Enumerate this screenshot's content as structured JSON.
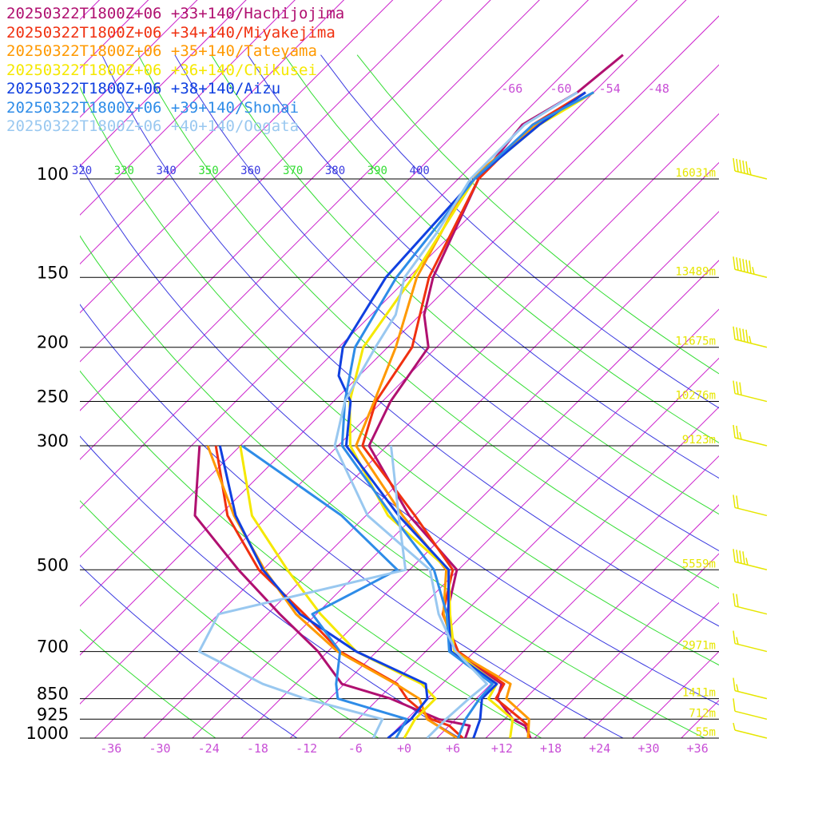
{
  "chart_data": {
    "type": "line",
    "title": "",
    "legend_position": "top-left",
    "xlabel": "",
    "ylabel": "",
    "ylim": [
      1000,
      100
    ],
    "xlim": [
      -36,
      36
    ],
    "pressure_levels": [
      100,
      150,
      200,
      250,
      300,
      500,
      700,
      850,
      925,
      1000
    ],
    "temperature_ticks": [
      "-36",
      "-30",
      "-24",
      "-18",
      "-12",
      "-6",
      "+0",
      "+6",
      "+12",
      "+18",
      "+24",
      "+30",
      "+36"
    ],
    "top_temperature_labels": [
      "-66",
      "-60",
      "-54",
      "-48"
    ],
    "theta_labels": [
      "320",
      "330",
      "340",
      "350",
      "360",
      "370",
      "380",
      "390",
      "400"
    ],
    "height_labels": [
      {
        "p": 100,
        "text": "16031m"
      },
      {
        "p": 150,
        "text": "13489m"
      },
      {
        "p": 200,
        "text": "11675m"
      },
      {
        "p": 250,
        "text": "10276m"
      },
      {
        "p": 300,
        "text": "9123m"
      },
      {
        "p": 500,
        "text": "5559m"
      },
      {
        "p": 700,
        "text": "2971m"
      },
      {
        "p": 850,
        "text": "1411m"
      },
      {
        "p": 925,
        "text": "712m"
      },
      {
        "p": 1000,
        "text": "55m"
      }
    ],
    "colors": {
      "isotherm": "#cc22cc",
      "dry_adiabat_blue": "#3a3ae0",
      "dry_adiabat_green": "#33dd33",
      "height_label": "#e6e600",
      "wind_barb": "#e6e600",
      "axis": "#000000"
    },
    "series": [
      {
        "name": "20250322T1800Z+06 +33+140/Hachijojima",
        "color": "#b01070",
        "temperature": [
          [
            1000,
            15.5
          ],
          [
            950,
            13.3
          ],
          [
            925,
            11.0
          ],
          [
            850,
            6.6
          ],
          [
            800,
            5.3
          ],
          [
            700,
            -4.3
          ],
          [
            600,
            -10.0
          ],
          [
            500,
            -14.2
          ],
          [
            400,
            -26.7
          ],
          [
            300,
            -40.2
          ],
          [
            250,
            -43.0
          ],
          [
            200,
            -45.0
          ],
          [
            175,
            -49.5
          ],
          [
            150,
            -53.0
          ],
          [
            100,
            -59.5
          ],
          [
            80,
            -60.8
          ],
          [
            70,
            -58.0
          ],
          [
            60,
            -57.0
          ]
        ],
        "dewpoint": [
          [
            1000,
            7.5
          ],
          [
            950,
            6.5
          ],
          [
            925,
            1.9
          ],
          [
            850,
            -6.5
          ],
          [
            800,
            -14.3
          ],
          [
            700,
            -21.2
          ],
          [
            600,
            -30.5
          ],
          [
            500,
            -41.0
          ],
          [
            400,
            -53.0
          ],
          [
            300,
            -61.0
          ]
        ]
      },
      {
        "name": "20250322T1800Z+06 +34+140/Miyakejima",
        "color": "#f03010",
        "temperature": [
          [
            1000,
            15.3
          ],
          [
            950,
            13.7
          ],
          [
            925,
            12.0
          ],
          [
            850,
            6.4
          ],
          [
            800,
            5.6
          ],
          [
            700,
            -4.0
          ],
          [
            600,
            -10.5
          ],
          [
            500,
            -14.7
          ],
          [
            400,
            -26.0
          ],
          [
            300,
            -41.0
          ],
          [
            250,
            -44.8
          ],
          [
            200,
            -47.0
          ],
          [
            150,
            -53.5
          ],
          [
            100,
            -59.5
          ],
          [
            80,
            -59.5
          ],
          [
            70,
            -57.0
          ]
        ],
        "dewpoint": [
          [
            1000,
            7.2
          ],
          [
            950,
            4.0
          ],
          [
            925,
            1.0
          ],
          [
            850,
            -4.5
          ],
          [
            800,
            -7.5
          ],
          [
            700,
            -18.5
          ],
          [
            600,
            -27.5
          ],
          [
            500,
            -38.5
          ],
          [
            400,
            -49.0
          ],
          [
            300,
            -59.0
          ]
        ]
      },
      {
        "name": "20250322T1800Z+06 +35+140/Tateyama",
        "color": "#ff9900",
        "temperature": [
          [
            1000,
            15.2
          ],
          [
            925,
            13.0
          ],
          [
            850,
            7.7
          ],
          [
            800,
            6.4
          ],
          [
            700,
            -4.4
          ],
          [
            600,
            -10.4
          ],
          [
            500,
            -15.5
          ],
          [
            400,
            -27.5
          ],
          [
            300,
            -41.8
          ],
          [
            250,
            -45.0
          ],
          [
            200,
            -49.0
          ],
          [
            150,
            -55.0
          ],
          [
            100,
            -60.5
          ],
          [
            80,
            -59.0
          ],
          [
            70,
            -56.0
          ]
        ],
        "dewpoint": [
          [
            1000,
            6.5
          ],
          [
            925,
            0.5
          ],
          [
            850,
            -3.0
          ],
          [
            800,
            -7.7
          ],
          [
            700,
            -18.8
          ],
          [
            600,
            -28.5
          ],
          [
            500,
            -37.8
          ],
          [
            400,
            -48.2
          ],
          [
            300,
            -60.0
          ]
        ]
      },
      {
        "name": "20250322T1800Z+06 +36+140/Chikusei",
        "color": "#f5e800",
        "temperature": [
          [
            1000,
            13.0
          ],
          [
            925,
            11.0
          ],
          [
            850,
            5.5
          ],
          [
            800,
            4.7
          ],
          [
            700,
            -4.5
          ],
          [
            600,
            -9.6
          ],
          [
            500,
            -15.2
          ],
          [
            400,
            -29.3
          ],
          [
            300,
            -42.5
          ],
          [
            250,
            -48.0
          ],
          [
            200,
            -53.0
          ],
          [
            150,
            -55.5
          ],
          [
            100,
            -60.0
          ],
          [
            80,
            -58.7
          ],
          [
            70,
            -56.0
          ]
        ],
        "dewpoint": [
          [
            1000,
            0.0
          ],
          [
            925,
            -1.0
          ],
          [
            850,
            -1.0
          ],
          [
            800,
            -4.5
          ],
          [
            700,
            -16.5
          ],
          [
            600,
            -25.5
          ],
          [
            500,
            -35.0
          ],
          [
            400,
            -46.0
          ],
          [
            300,
            -56.0
          ]
        ]
      },
      {
        "name": "20250322T1800Z+06 +38+140/Aizu",
        "color": "#1040e0",
        "temperature": [
          [
            1000,
            8.5
          ],
          [
            925,
            7.0
          ],
          [
            850,
            4.7
          ],
          [
            800,
            4.7
          ],
          [
            700,
            -4.9
          ],
          [
            600,
            -9.8
          ],
          [
            500,
            -15.2
          ],
          [
            400,
            -28.0
          ],
          [
            300,
            -43.0
          ],
          [
            250,
            -47.9
          ],
          [
            225,
            -52.5
          ],
          [
            200,
            -55.5
          ],
          [
            150,
            -58.8
          ],
          [
            100,
            -60.0
          ],
          [
            80,
            -58.7
          ],
          [
            70,
            -57.0
          ]
        ],
        "dewpoint": [
          [
            1000,
            -2.0
          ],
          [
            925,
            -1.5
          ],
          [
            850,
            -2.0
          ],
          [
            800,
            -4.0
          ],
          [
            700,
            -16.5
          ],
          [
            600,
            -28.0
          ],
          [
            500,
            -38.0
          ],
          [
            400,
            -48.0
          ],
          [
            300,
            -58.5
          ]
        ]
      },
      {
        "name": "20250322T1800Z+06 +39+140/Shonai",
        "color": "#2e8ce8",
        "temperature": [
          [
            1000,
            6.6
          ],
          [
            925,
            5.2
          ],
          [
            850,
            4.4
          ],
          [
            800,
            4.2
          ],
          [
            700,
            -5.1
          ],
          [
            600,
            -10.0
          ],
          [
            500,
            -17.0
          ],
          [
            400,
            -28.8
          ],
          [
            300,
            -43.5
          ],
          [
            250,
            -48.6
          ],
          [
            200,
            -54.0
          ],
          [
            150,
            -57.5
          ],
          [
            100,
            -60.0
          ],
          [
            80,
            -59.5
          ],
          [
            70,
            -56.0
          ]
        ],
        "dewpoint": [
          [
            1000,
            -1.0
          ],
          [
            925,
            -2.0
          ],
          [
            850,
            -13.0
          ],
          [
            800,
            -15.0
          ],
          [
            700,
            -18.5
          ],
          [
            600,
            -26.5
          ],
          [
            500,
            -21.5
          ],
          [
            400,
            -35.0
          ],
          [
            300,
            -55.8
          ]
        ]
      },
      {
        "name": "20250322T1800Z+06 +40+140/Oogata",
        "color": "#99c8f0",
        "temperature": [
          [
            1000,
            2.8
          ],
          [
            925,
            2.8
          ],
          [
            850,
            3.1
          ],
          [
            800,
            3.5
          ],
          [
            700,
            -4.3
          ],
          [
            600,
            -11.0
          ],
          [
            500,
            -17.5
          ],
          [
            400,
            -31.8
          ],
          [
            300,
            -44.4
          ],
          [
            250,
            -48.6
          ],
          [
            225,
            -50.0
          ],
          [
            200,
            -51.5
          ],
          [
            175,
            -53.0
          ],
          [
            150,
            -56.5
          ],
          [
            125,
            -58.0
          ],
          [
            100,
            -60.5
          ],
          [
            80,
            -60.5
          ],
          [
            70,
            -58.0
          ]
        ],
        "dewpoint": [
          [
            1000,
            -3.8
          ],
          [
            925,
            -5.0
          ],
          [
            850,
            -17.0
          ],
          [
            800,
            -24.0
          ],
          [
            700,
            -35.8
          ],
          [
            600,
            -38.0
          ],
          [
            500,
            -20.5
          ],
          [
            400,
            -28.0
          ],
          [
            300,
            -37.5
          ]
        ]
      }
    ],
    "wind_barbs": [
      {
        "p": 100,
        "knots": 55
      },
      {
        "p": 150,
        "knots": 65
      },
      {
        "p": 200,
        "knots": 55
      },
      {
        "p": 250,
        "knots": 30
      },
      {
        "p": 300,
        "knots": 25
      },
      {
        "p": 400,
        "knots": 20
      },
      {
        "p": 500,
        "knots": 45
      },
      {
        "p": 600,
        "knots": 20
      },
      {
        "p": 700,
        "knots": 15
      },
      {
        "p": 850,
        "knots": 15
      },
      {
        "p": 925,
        "knots": 10
      },
      {
        "p": 1000,
        "knots": 5
      }
    ]
  }
}
